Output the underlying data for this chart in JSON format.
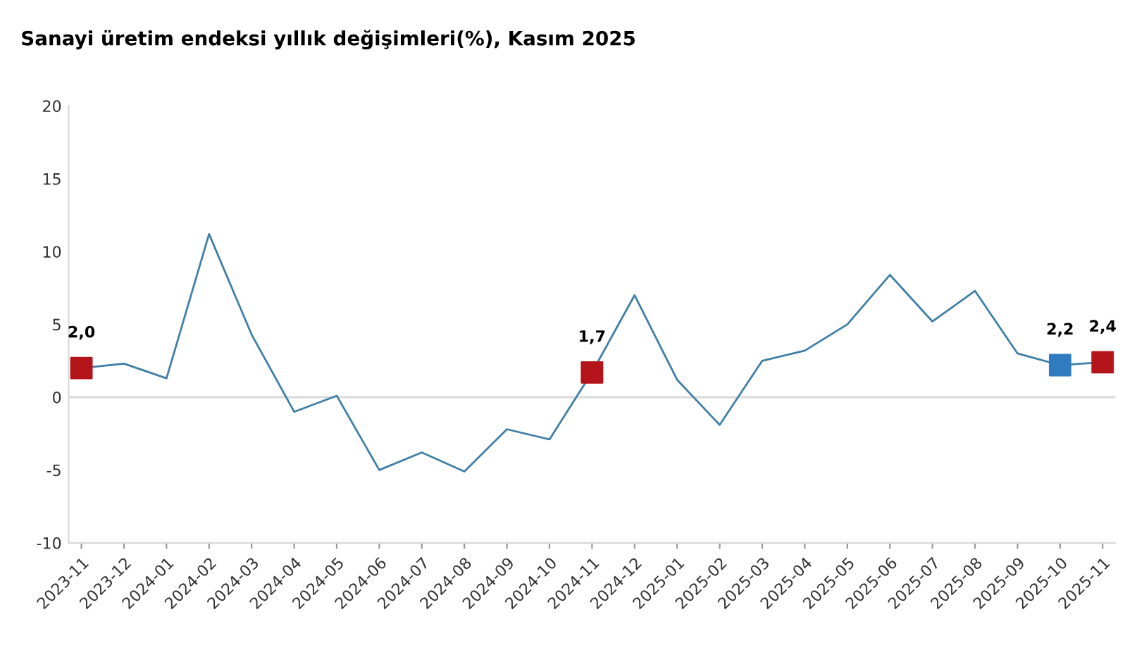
{
  "chart_data": {
    "type": "line",
    "title": "Sanayi üretim endeksi yıllık değişimleri(%), Kasım 2025",
    "categories": [
      "2023-11",
      "2023-12",
      "2024-01",
      "2024-02",
      "2024-03",
      "2024-04",
      "2024-05",
      "2024-06",
      "2024-07",
      "2024-08",
      "2024-09",
      "2024-10",
      "2024-11",
      "2024-12",
      "2025-01",
      "2025-02",
      "2025-03",
      "2025-04",
      "2025-05",
      "2025-06",
      "2025-07",
      "2025-08",
      "2025-09",
      "2025-10",
      "2025-11"
    ],
    "series": [
      {
        "color": "#3f7fa6",
        "marker": "none",
        "values": [
          2.0,
          2.3,
          1.3,
          11.2,
          4.3,
          -1.0,
          0.1,
          -5.0,
          -3.8,
          -5.1,
          -2.2,
          -2.9,
          1.7,
          7.0,
          1.2,
          -1.9,
          2.5,
          3.2,
          5.0,
          8.4,
          5.2,
          7.3,
          3.0,
          2.2,
          2.4
        ]
      },
      {
        "type": "scatter",
        "color": "#b3151b",
        "marker": "square",
        "values": [
          2.0,
          null,
          null,
          null,
          null,
          null,
          null,
          null,
          null,
          null,
          null,
          null,
          1.7,
          null,
          null,
          null,
          null,
          null,
          null,
          null,
          null,
          null,
          null,
          null,
          2.4
        ],
        "value_labels": [
          "2,0",
          null,
          null,
          null,
          null,
          null,
          null,
          null,
          null,
          null,
          null,
          null,
          "1,7",
          null,
          null,
          null,
          null,
          null,
          null,
          null,
          null,
          null,
          null,
          null,
          "2,4"
        ]
      },
      {
        "type": "scatter",
        "color": "#2f7bbf",
        "marker": "square",
        "values": [
          null,
          null,
          null,
          null,
          null,
          null,
          null,
          null,
          null,
          null,
          null,
          null,
          null,
          null,
          null,
          null,
          null,
          null,
          null,
          null,
          null,
          null,
          null,
          2.2,
          null
        ],
        "value_labels": [
          null,
          null,
          null,
          null,
          null,
          null,
          null,
          null,
          null,
          null,
          null,
          null,
          null,
          null,
          null,
          null,
          null,
          null,
          null,
          null,
          null,
          null,
          null,
          "2,2",
          null
        ]
      }
    ],
    "ylim": [
      -10,
      20
    ],
    "yticks": [
      -10,
      -5,
      0,
      5,
      10,
      15,
      20
    ],
    "ref_lines": [
      {
        "axis": "y",
        "value": 0,
        "color": "#d9d9d9"
      }
    ],
    "grid": false,
    "legend": false
  }
}
